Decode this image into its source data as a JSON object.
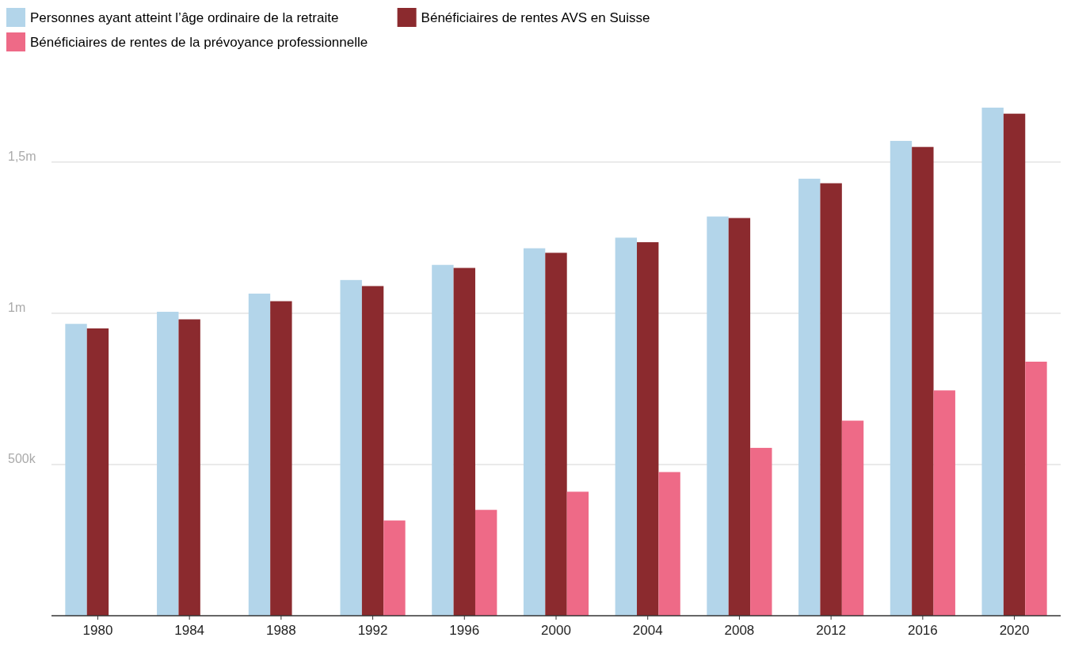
{
  "chart_data": {
    "type": "bar",
    "categories": [
      "1980",
      "1984",
      "1988",
      "1992",
      "1996",
      "2000",
      "2004",
      "2008",
      "2012",
      "2016",
      "2020"
    ],
    "series": [
      {
        "name": "Personnes ayant atteint l’âge ordinaire de la retraite",
        "color": "#b3d5ea",
        "values": [
          965000,
          1005000,
          1065000,
          1110000,
          1160000,
          1215000,
          1250000,
          1320000,
          1445000,
          1570000,
          1680000
        ]
      },
      {
        "name": "Bénéficiaires de rentes AVS en Suisse",
        "color": "#8b2a2e",
        "values": [
          950000,
          980000,
          1040000,
          1090000,
          1150000,
          1200000,
          1235000,
          1315000,
          1430000,
          1550000,
          1660000
        ]
      },
      {
        "name": "Bénéficiaires de rentes de la prévoyance professionnelle",
        "color": "#ee6a87",
        "values": [
          null,
          null,
          null,
          315000,
          350000,
          410000,
          475000,
          555000,
          645000,
          745000,
          840000
        ]
      }
    ],
    "ylim": [
      0,
      1680000
    ],
    "yticks": [
      {
        "value": 0,
        "label": null
      },
      {
        "value": 500000,
        "label": "500k"
      },
      {
        "value": 1000000,
        "label": "1m"
      },
      {
        "value": 1500000,
        "label": "1,5m"
      }
    ],
    "grid": "y",
    "legend": "top left"
  }
}
